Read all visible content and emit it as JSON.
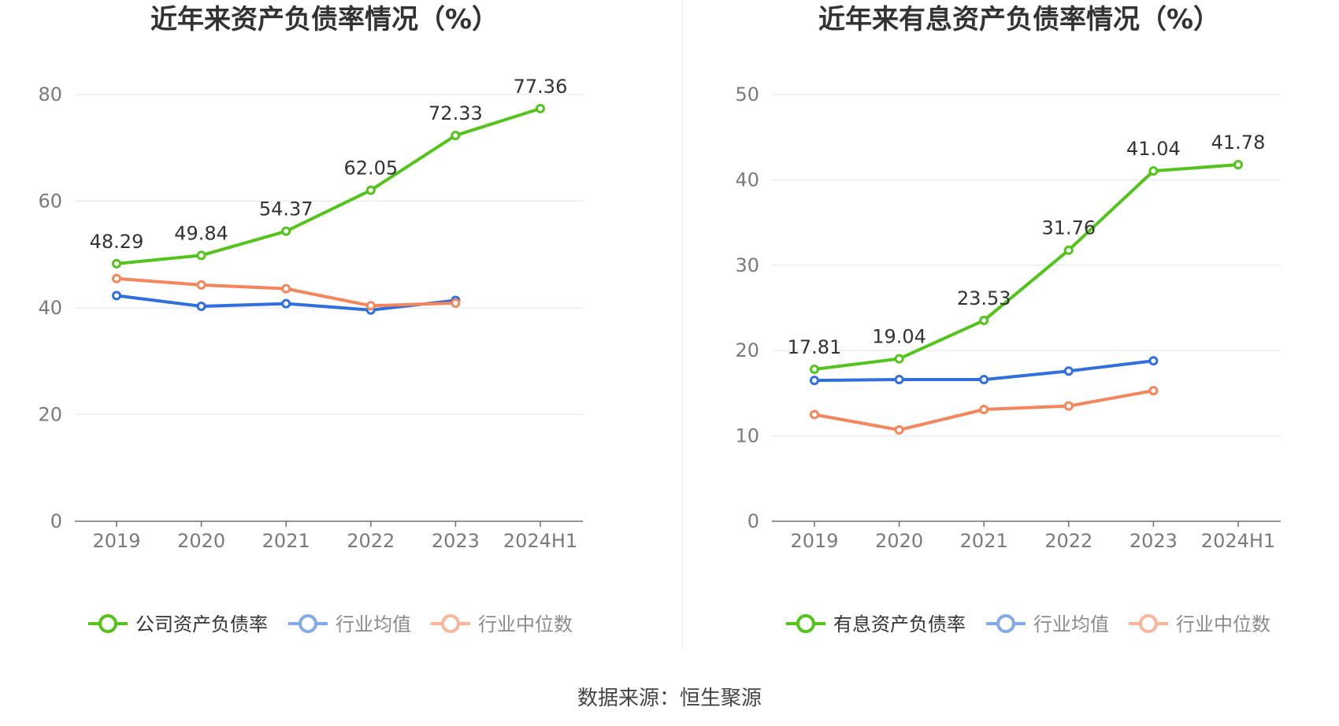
{
  "source_text": "数据来源：恒生聚源",
  "chart_data": [
    {
      "type": "line",
      "title": "近年来资产负债率情况（%）",
      "xlabel": "",
      "ylabel": "",
      "categories": [
        "2019",
        "2020",
        "2021",
        "2022",
        "2023",
        "2024H1"
      ],
      "ylim": [
        0,
        80
      ],
      "yticks": [
        0,
        20,
        40,
        60,
        80
      ],
      "grid": true,
      "legend_position": "bottom",
      "series": [
        {
          "name": "公司资产负债率",
          "color": "#52c41a",
          "labeled": true,
          "values": [
            48.29,
            49.84,
            54.37,
            62.05,
            72.33,
            77.36
          ],
          "labels": [
            "48.29",
            "49.84",
            "54.37",
            "62.05",
            "72.33",
            "77.36"
          ]
        },
        {
          "name": "行业均值",
          "color": "#2f6fe0",
          "labeled": false,
          "values": [
            42.3,
            40.3,
            40.8,
            39.6,
            41.4,
            null
          ]
        },
        {
          "name": "行业中位数",
          "color": "#f5855a",
          "labeled": false,
          "values": [
            45.5,
            44.3,
            43.6,
            40.4,
            40.9,
            null
          ]
        }
      ]
    },
    {
      "type": "line",
      "title": "近年来有息资产负债率情况（%）",
      "xlabel": "",
      "ylabel": "",
      "categories": [
        "2019",
        "2020",
        "2021",
        "2022",
        "2023",
        "2024H1"
      ],
      "ylim": [
        0,
        50
      ],
      "yticks": [
        0,
        10,
        20,
        30,
        40,
        50
      ],
      "grid": true,
      "legend_position": "bottom",
      "series": [
        {
          "name": "有息资产负债率",
          "color": "#52c41a",
          "labeled": true,
          "values": [
            17.81,
            19.04,
            23.53,
            31.76,
            41.04,
            41.78
          ],
          "labels": [
            "17.81",
            "19.04",
            "23.53",
            "31.76",
            "41.04",
            "41.78"
          ]
        },
        {
          "name": "行业均值",
          "color": "#2f6fe0",
          "labeled": false,
          "values": [
            16.5,
            16.6,
            16.6,
            17.6,
            18.8,
            null
          ]
        },
        {
          "name": "行业中位数",
          "color": "#f5855a",
          "labeled": false,
          "values": [
            12.5,
            10.7,
            13.1,
            13.5,
            15.3,
            null
          ]
        }
      ]
    }
  ]
}
